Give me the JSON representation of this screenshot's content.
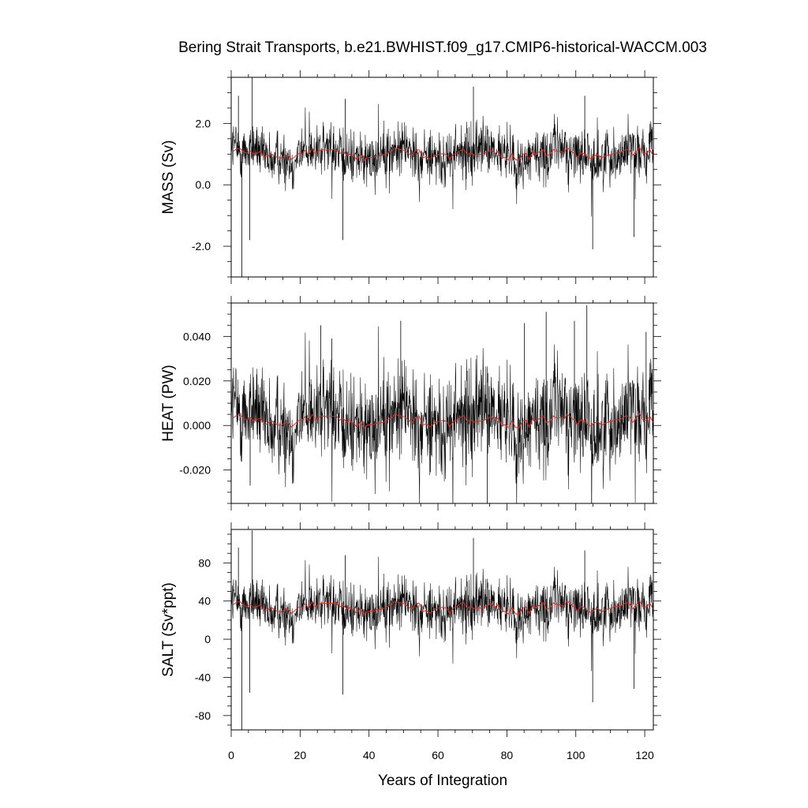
{
  "chart_data": {
    "type": "line",
    "title": "Bering Strait Transports, b.e21.BWHIST.f09_g17.CMIP6-historical-WACCM.003",
    "xlabel": "Years of Integration",
    "xlim": [
      0,
      122.5
    ],
    "x_ticks": [
      0,
      20,
      40,
      60,
      80,
      100,
      120
    ],
    "x_tick_labels": [
      "0",
      "20",
      "40",
      "60",
      "80",
      "100",
      "120"
    ],
    "grid": false,
    "panels": [
      {
        "ylabel": "MASS (Sv)",
        "ylim": [
          -3.0,
          3.5
        ],
        "y_ticks": [
          2.0,
          0.0,
          -2.0
        ],
        "y_tick_labels": [
          "2.0",
          "0.0",
          "-2.0"
        ],
        "series": [
          {
            "role": "monthly",
            "color": "#000000",
            "base": 1.0,
            "amp": 0.55,
            "noise_scale": 1.0,
            "spikes": [
              [
                2.1,
                2.9
              ],
              [
                3.1,
                -3.0
              ],
              [
                5.4,
                -1.8
              ],
              [
                6.1,
                3.5
              ],
              [
                32.4,
                -1.8
              ],
              [
                33.1,
                2.8
              ],
              [
                70.3,
                3.2
              ],
              [
                102.6,
                2.9
              ],
              [
                104.9,
                -2.1
              ],
              [
                116.9,
                -1.7
              ]
            ]
          },
          {
            "role": "annual_mean",
            "color": "#e8291c",
            "base": 1.0,
            "amp": 0.13
          }
        ]
      },
      {
        "ylabel": "HEAT (PW)",
        "ylim": [
          -0.035,
          0.055
        ],
        "y_ticks": [
          0.04,
          0.02,
          0.0,
          -0.02
        ],
        "y_tick_labels": [
          "0.040",
          "0.020",
          "0.000",
          "-0.020"
        ],
        "series": [
          {
            "role": "monthly",
            "color": "#000000",
            "base": 0.003,
            "amp": 0.014,
            "noise_scale": 1.0,
            "spikes": [
              [
                26.0,
                0.045
              ],
              [
                29.2,
                0.039
              ],
              [
                5.5,
                -0.027
              ],
              [
                49.2,
                0.047
              ],
              [
                57.8,
                -0.021
              ],
              [
                74.3,
                -0.035
              ],
              [
                85.1,
                0.046
              ],
              [
                91.4,
                0.051
              ],
              [
                99.6,
                0.047
              ],
              [
                103.2,
                0.054
              ],
              [
                120.4,
                0.042
              ]
            ]
          },
          {
            "role": "annual_mean",
            "color": "#e8291c",
            "base": 0.002,
            "amp": 0.002
          }
        ]
      },
      {
        "ylabel": "SALT (Sv*ppt)",
        "ylim": [
          -95,
          115
        ],
        "y_ticks": [
          80,
          40,
          0,
          -40,
          -80
        ],
        "y_tick_labels": [
          "80",
          "40",
          "0",
          "-40",
          "-80"
        ],
        "series": [
          {
            "role": "monthly",
            "color": "#000000",
            "base": 33,
            "amp": 18,
            "noise_scale": 1.0,
            "spikes": [
              [
                2.1,
                96
              ],
              [
                3.1,
                -95
              ],
              [
                5.4,
                -56
              ],
              [
                6.1,
                114
              ],
              [
                32.4,
                -58
              ],
              [
                33.1,
                88
              ],
              [
                70.3,
                106
              ],
              [
                102.6,
                93
              ],
              [
                104.9,
                -66
              ],
              [
                116.9,
                -52
              ]
            ]
          },
          {
            "role": "annual_mean",
            "color": "#e8291c",
            "base": 33,
            "amp": 4.5
          }
        ]
      }
    ]
  }
}
